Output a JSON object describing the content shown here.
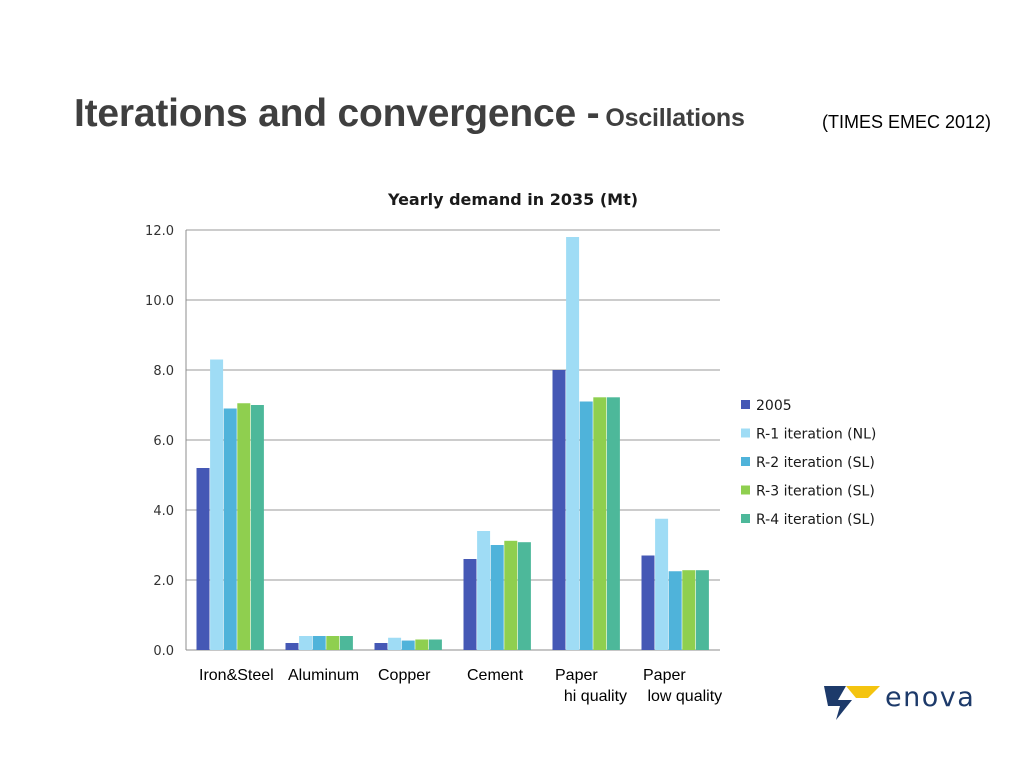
{
  "slide": {
    "title_main": "Iterations and convergence -",
    "title_sub": "Oscillations",
    "source": "(TIMES EMEC 2012)"
  },
  "brand": {
    "logo_text": "enova"
  },
  "chart_data": {
    "type": "bar",
    "title": "Yearly demand in 2035 (Mt)",
    "xlabel": "",
    "ylabel": "",
    "ylim": [
      0,
      12
    ],
    "yticks": [
      "0.0",
      "2.0",
      "4.0",
      "6.0",
      "8.0",
      "10.0",
      "12.0"
    ],
    "grid": true,
    "legend_position": "right",
    "categories": [
      "Iron&Steel",
      "Aluminum",
      "Copper",
      "Cement",
      "Paper\n  hi quality",
      "Paper\n low quality"
    ],
    "series": [
      {
        "name": "2005",
        "color": "#4558b5",
        "values": [
          5.2,
          0.2,
          0.2,
          2.6,
          8.0,
          2.7
        ]
      },
      {
        "name": "R-1 iteration (NL)",
        "color": "#9fdcf5",
        "values": [
          8.3,
          0.4,
          0.35,
          3.4,
          11.8,
          3.75
        ]
      },
      {
        "name": "R-2 iteration (SL)",
        "color": "#4fb3da",
        "values": [
          6.9,
          0.4,
          0.27,
          3.0,
          7.1,
          2.25
        ]
      },
      {
        "name": "R-3 iteration (SL)",
        "color": "#8fcf4f",
        "values": [
          7.05,
          0.4,
          0.3,
          3.12,
          7.22,
          2.28
        ]
      },
      {
        "name": "R-4 iteration (SL)",
        "color": "#4db89a",
        "values": [
          7.0,
          0.4,
          0.3,
          3.08,
          7.22,
          2.28
        ]
      }
    ]
  }
}
